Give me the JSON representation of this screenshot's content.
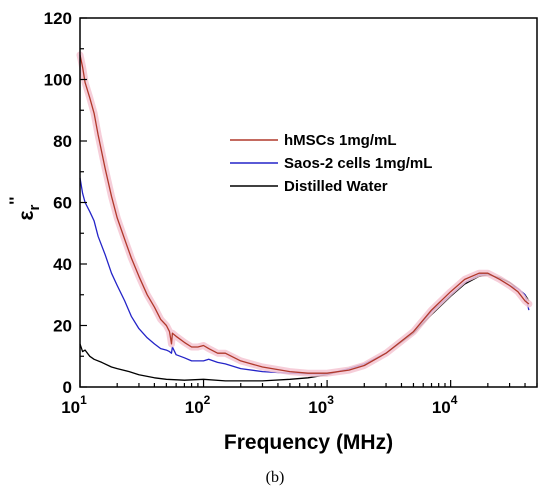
{
  "chart_data": {
    "type": "line",
    "title": "",
    "xlabel": "Frequency (MHz)",
    "ylabel": "ε_r''",
    "ylabel_parts": {
      "base": "ε",
      "sub": "r",
      "sup": "''"
    },
    "x_scale": "log",
    "xlim": [
      10,
      50000
    ],
    "ylim": [
      0,
      120
    ],
    "x_ticks": [
      {
        "value": 10,
        "base": "10",
        "exp": "1"
      },
      {
        "value": 100,
        "base": "10",
        "exp": "2"
      },
      {
        "value": 1000,
        "base": "10",
        "exp": "3"
      },
      {
        "value": 10000,
        "base": "10",
        "exp": "4"
      }
    ],
    "y_ticks": [
      "0",
      "20",
      "40",
      "60",
      "80",
      "100",
      "120"
    ],
    "grid": false,
    "legend_position": "center-right",
    "caption": "(b)",
    "series": [
      {
        "name": "hMSCs 1mg/mL",
        "color": "#b0392b",
        "band_color": "#f5c6d2",
        "points": [
          [
            10,
            108
          ],
          [
            10.5,
            104
          ],
          [
            11,
            99
          ],
          [
            12,
            94
          ],
          [
            13,
            89
          ],
          [
            14,
            82
          ],
          [
            16,
            71
          ],
          [
            18,
            62
          ],
          [
            20,
            55
          ],
          [
            23,
            48
          ],
          [
            26,
            42
          ],
          [
            30,
            36
          ],
          [
            35,
            30
          ],
          [
            40,
            26
          ],
          [
            45,
            22
          ],
          [
            50,
            20
          ],
          [
            53,
            18
          ],
          [
            55,
            14
          ],
          [
            56,
            17.5
          ],
          [
            60,
            16.5
          ],
          [
            70,
            14.5
          ],
          [
            80,
            13
          ],
          [
            90,
            13
          ],
          [
            100,
            13.5
          ],
          [
            110,
            12.5
          ],
          [
            130,
            11
          ],
          [
            150,
            11
          ],
          [
            200,
            8.5
          ],
          [
            300,
            6.5
          ],
          [
            500,
            5
          ],
          [
            700,
            4.5
          ],
          [
            1000,
            4.5
          ],
          [
            1500,
            5.5
          ],
          [
            2000,
            7
          ],
          [
            3000,
            11
          ],
          [
            5000,
            18
          ],
          [
            7000,
            25
          ],
          [
            10000,
            31
          ],
          [
            13000,
            35
          ],
          [
            17000,
            37
          ],
          [
            20000,
            37
          ],
          [
            25000,
            35
          ],
          [
            30000,
            33
          ],
          [
            35000,
            31
          ],
          [
            40000,
            28
          ],
          [
            43000,
            27
          ]
        ]
      },
      {
        "name": "Saos-2 cells 1mg/mL",
        "color": "#2424c8",
        "points": [
          [
            10,
            68
          ],
          [
            10.5,
            63
          ],
          [
            11,
            60
          ],
          [
            12,
            57
          ],
          [
            13,
            54
          ],
          [
            14,
            49
          ],
          [
            16,
            43
          ],
          [
            18,
            37
          ],
          [
            20,
            33
          ],
          [
            23,
            28
          ],
          [
            26,
            23
          ],
          [
            30,
            19
          ],
          [
            35,
            16
          ],
          [
            40,
            14
          ],
          [
            45,
            12.5
          ],
          [
            50,
            12
          ],
          [
            53,
            11.5
          ],
          [
            55,
            11
          ],
          [
            56,
            13
          ],
          [
            60,
            10.5
          ],
          [
            70,
            9.5
          ],
          [
            80,
            8.5
          ],
          [
            100,
            8.5
          ],
          [
            110,
            9
          ],
          [
            130,
            8
          ],
          [
            150,
            7.5
          ],
          [
            200,
            6
          ],
          [
            300,
            5
          ],
          [
            500,
            4.5
          ],
          [
            700,
            4.3
          ],
          [
            1000,
            4.2
          ],
          [
            1500,
            6
          ],
          [
            2000,
            7.5
          ],
          [
            3000,
            11
          ],
          [
            5000,
            18
          ],
          [
            7000,
            24.5
          ],
          [
            10000,
            30
          ],
          [
            13000,
            34
          ],
          [
            17000,
            36.5
          ],
          [
            20000,
            37
          ],
          [
            25000,
            35
          ],
          [
            30000,
            33
          ],
          [
            35000,
            32
          ],
          [
            40000,
            30
          ],
          [
            43000,
            25
          ]
        ]
      },
      {
        "name": "Distilled Water",
        "color": "#000000",
        "points": [
          [
            10,
            14
          ],
          [
            10.5,
            11.5
          ],
          [
            11,
            12
          ],
          [
            12,
            10
          ],
          [
            13,
            9
          ],
          [
            15,
            8
          ],
          [
            18,
            6.5
          ],
          [
            20,
            6
          ],
          [
            25,
            5
          ],
          [
            30,
            4
          ],
          [
            40,
            3
          ],
          [
            50,
            2.5
          ],
          [
            70,
            2.2
          ],
          [
            100,
            2.5
          ],
          [
            150,
            2
          ],
          [
            200,
            2
          ],
          [
            300,
            2
          ],
          [
            500,
            2.5
          ],
          [
            700,
            3
          ],
          [
            1000,
            4
          ],
          [
            1500,
            6
          ],
          [
            2000,
            7.5
          ],
          [
            3000,
            11
          ],
          [
            5000,
            17.5
          ],
          [
            7000,
            23.5
          ],
          [
            10000,
            29.5
          ],
          [
            13000,
            33.5
          ],
          [
            17000,
            36
          ],
          [
            20000,
            36.5
          ],
          [
            25000,
            35.5
          ],
          [
            30000,
            34
          ],
          [
            35000,
            32
          ],
          [
            40000,
            30
          ],
          [
            43000,
            28
          ]
        ]
      }
    ]
  }
}
